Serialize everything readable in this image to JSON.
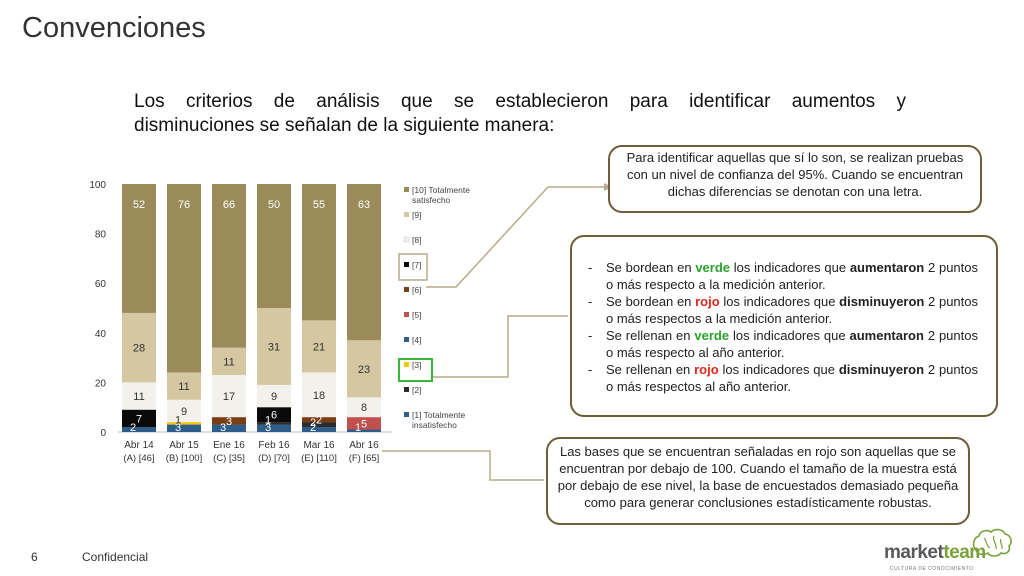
{
  "slide": {
    "title": "Convenciones",
    "intro_line1": "Los criterios de análisis que se establecieron para identificar aumentos y",
    "intro_line2": "disminuciones se señalan de la siguiente manera:",
    "page_number": "6",
    "footer_label": "Confidencial"
  },
  "callouts": {
    "significance": "Para identificar aquellas que sí lo son, se realizan pruebas con un nivel de confianza del 95%. Cuando se encuentran dichas diferencias se denotan con una letra.",
    "rules": [
      {
        "dash": "-",
        "t1": "Se bordean en ",
        "h1": "verde",
        "t2": " los indicadores que ",
        "h2": "aumentaron",
        "t3": " 2 puntos o más respecto a la medición anterior."
      },
      {
        "dash": "-",
        "t1": "Se bordean en ",
        "h1": "rojo",
        "t2": " los indicadores que ",
        "h2": "disminuyeron",
        "t3": " 2 puntos o más respectos a la medición anterior."
      },
      {
        "dash": "-",
        "t1": "Se rellenan en ",
        "h1": "verde",
        "t2": " los indicadores que ",
        "h2": "aumentaron",
        "t3": " 2 puntos o más respecto al año anterior."
      },
      {
        "dash": "-",
        "t1": "Se rellenan en ",
        "h1": "rojo",
        "t2": " los indicadores que ",
        "h2": "disminuyeron",
        "t3": " 2 puntos o más respectos al año anterior."
      }
    ],
    "bases": "Las bases que se encuentran señaladas en rojo son aquellas que se encuentran por debajo de 100. Cuando el tamaño de la muestra está por debajo de ese nivel, la base de encuestados demasiado pequeña como para generar conclusiones estadísticamente robustas."
  },
  "colors": {
    "green": "#2aa12a",
    "red": "#e0271d",
    "border": "#6b5d38"
  },
  "logo": {
    "part1": "market",
    "part2": "team",
    "tagline": "CULTURA DE CONOCIMIENTO"
  },
  "chart_data": {
    "type": "bar",
    "stacked": true,
    "ylim": [
      0,
      100
    ],
    "yticks": [
      0,
      20,
      40,
      60,
      80,
      100
    ],
    "categories": [
      {
        "l1": "Abr 14",
        "l2": "(A) [46]"
      },
      {
        "l1": "Abr 15",
        "l2": "(B) [100]"
      },
      {
        "l1": "Ene 16",
        "l2": "(C) [35]"
      },
      {
        "l1": "Feb 16",
        "l2": "(D) [70]"
      },
      {
        "l1": "Mar 16",
        "l2": "(E) [110]"
      },
      {
        "l1": "Abr 16",
        "l2": "(F) [65]"
      }
    ],
    "series": [
      {
        "name": "[1] Totalmente insatisfecho",
        "color": "#2f5d8a",
        "values": [
          2,
          3,
          3,
          3,
          2,
          1
        ]
      },
      {
        "name": "[2]",
        "color": "#2c2c2c",
        "values": [
          0,
          0,
          0,
          1,
          2,
          0
        ]
      },
      {
        "name": "[3]",
        "color": "#f2c811",
        "values": [
          0,
          1,
          0,
          0,
          0,
          0
        ]
      },
      {
        "name": "[4]",
        "color": "#2f5d8a",
        "values": [
          0,
          0,
          0,
          0,
          0,
          0
        ]
      },
      {
        "name": "[5]",
        "color": "#c0504d",
        "values": [
          0,
          0,
          0,
          0,
          0,
          5
        ]
      },
      {
        "name": "[6]",
        "color": "#7a3e14",
        "values": [
          0,
          0,
          3,
          0,
          2,
          0
        ]
      },
      {
        "name": "[7]",
        "color": "#0a0a0a",
        "values": [
          7,
          0,
          0,
          6,
          0,
          0
        ]
      },
      {
        "name": "[8]",
        "color": "#f3f1ec",
        "values": [
          11,
          9,
          17,
          9,
          18,
          8
        ]
      },
      {
        "name": "[9]",
        "color": "#d4c7a1",
        "values": [
          28,
          11,
          11,
          31,
          21,
          23
        ]
      },
      {
        "name": "[10] Totalmente satisfecho",
        "color": "#9c8b5a",
        "values": [
          52,
          76,
          66,
          50,
          55,
          63
        ]
      }
    ],
    "labels": [
      {
        "bar": 0,
        "series": 0,
        "text": "2"
      },
      {
        "bar": 0,
        "series": 6,
        "text": "7"
      },
      {
        "bar": 0,
        "series": 7,
        "text": "11"
      },
      {
        "bar": 0,
        "series": 8,
        "text": "28"
      },
      {
        "bar": 0,
        "series": 9,
        "text": "52"
      },
      {
        "bar": 1,
        "series": 0,
        "text": "3"
      },
      {
        "bar": 1,
        "series": 2,
        "text": "1"
      },
      {
        "bar": 1,
        "series": 7,
        "text": "9"
      },
      {
        "bar": 1,
        "series": 8,
        "text": "11"
      },
      {
        "bar": 1,
        "series": 9,
        "text": "76"
      },
      {
        "bar": 2,
        "series": 0,
        "text": "3"
      },
      {
        "bar": 2,
        "series": 5,
        "text": "3"
      },
      {
        "bar": 2,
        "series": 7,
        "text": "17"
      },
      {
        "bar": 2,
        "series": 8,
        "text": "11"
      },
      {
        "bar": 2,
        "series": 9,
        "text": "66"
      },
      {
        "bar": 3,
        "series": 0,
        "text": "3"
      },
      {
        "bar": 3,
        "series": 1,
        "text": "1"
      },
      {
        "bar": 3,
        "series": 6,
        "text": "6"
      },
      {
        "bar": 3,
        "series": 7,
        "text": "9"
      },
      {
        "bar": 3,
        "series": 8,
        "text": "31"
      },
      {
        "bar": 3,
        "series": 9,
        "text": "50"
      },
      {
        "bar": 4,
        "series": 0,
        "text": "2"
      },
      {
        "bar": 4,
        "series": 1,
        "text": "2"
      },
      {
        "bar": 4,
        "series": 5,
        "text": "2"
      },
      {
        "bar": 4,
        "series": 7,
        "text": "18"
      },
      {
        "bar": 4,
        "series": 8,
        "text": "21"
      },
      {
        "bar": 4,
        "series": 9,
        "text": "55"
      },
      {
        "bar": 5,
        "series": 0,
        "text": "1"
      },
      {
        "bar": 5,
        "series": 4,
        "text": "5"
      },
      {
        "bar": 5,
        "series": 7,
        "text": "8"
      },
      {
        "bar": 5,
        "series": 8,
        "text": "23"
      },
      {
        "bar": 5,
        "series": 9,
        "text": "63"
      }
    ],
    "legend_position": "right",
    "legend_order_top_to_bottom": [
      9,
      8,
      7,
      6,
      5,
      4,
      3,
      2,
      1,
      0
    ],
    "highlighted_legend_items": {
      "[7]": "tan",
      "[3]": "green"
    }
  }
}
